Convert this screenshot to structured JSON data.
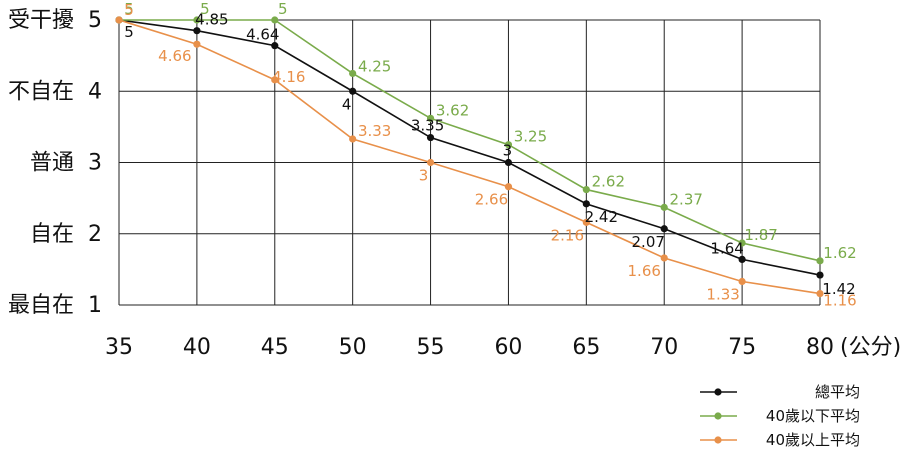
{
  "chart_data": {
    "type": "line",
    "x": [
      35,
      40,
      45,
      50,
      55,
      60,
      65,
      70,
      75,
      80
    ],
    "x_unit_label": "(公分)",
    "xlim": [
      35,
      80
    ],
    "ylim": [
      1,
      5
    ],
    "y_ticks": [
      {
        "value": 5,
        "label": "受干擾",
        "num": "5"
      },
      {
        "value": 4,
        "label": "不自在",
        "num": "4"
      },
      {
        "value": 3,
        "label": "普通",
        "num": "3"
      },
      {
        "value": 2,
        "label": "自在",
        "num": "2"
      },
      {
        "value": 1,
        "label": "最自在",
        "num": "1"
      }
    ],
    "grid": true,
    "legend_position": "bottom-right",
    "series": [
      {
        "name": "總平均",
        "color": "#111111",
        "values": [
          5,
          4.85,
          4.64,
          4,
          3.35,
          3,
          2.42,
          2.07,
          1.64,
          1.42
        ],
        "labels": [
          "5",
          "4.85",
          "4.64",
          "4",
          "3.35",
          "3",
          "2.42",
          "2.07",
          "1.64",
          "1.42"
        ]
      },
      {
        "name": "40歲以下平均",
        "color": "#7aab4b",
        "values": [
          5,
          5,
          5,
          4.25,
          3.62,
          3.25,
          2.62,
          2.37,
          1.87,
          1.62
        ],
        "labels": [
          "5",
          "5",
          "5",
          "4.25",
          "3.62",
          "3.25",
          "2.62",
          "2.37",
          "1.87",
          "1.62"
        ]
      },
      {
        "name": "40歲以上平均",
        "color": "#e8904a",
        "values": [
          5,
          4.66,
          4.16,
          3.33,
          3,
          2.66,
          2.16,
          1.66,
          1.33,
          1.16
        ],
        "labels": [
          "5",
          "4.66",
          "4.16",
          "3.33",
          "3",
          "2.66",
          "2.16",
          "1.66",
          "1.33",
          "1.16"
        ]
      }
    ]
  }
}
